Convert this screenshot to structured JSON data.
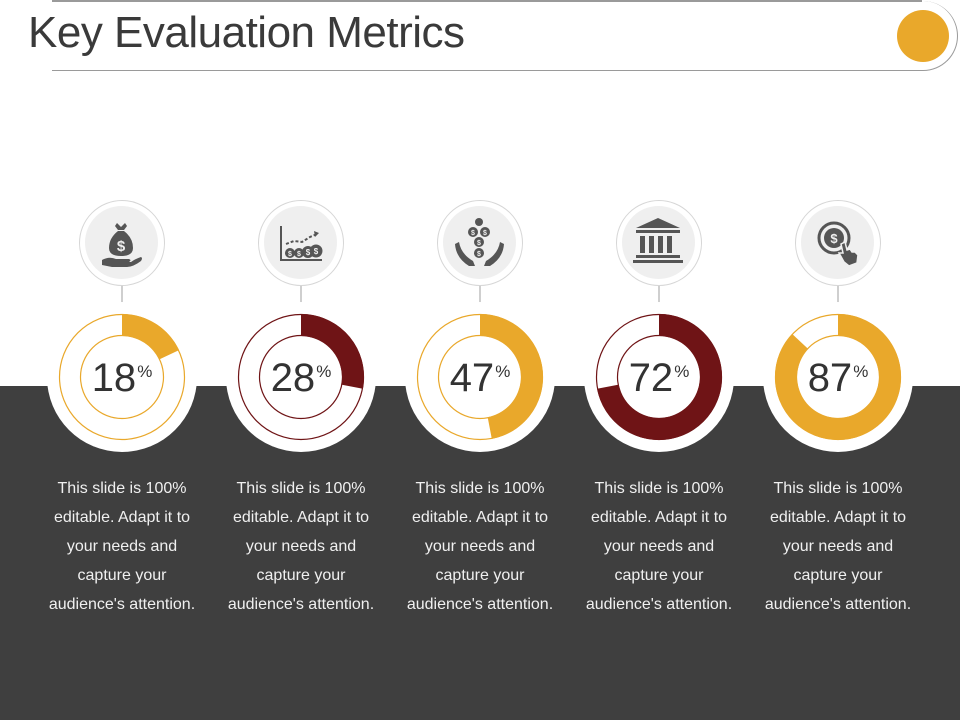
{
  "title": "Key Evaluation Metrics",
  "colors": {
    "accent": "#e9a82b",
    "dark_red": "#6f1416",
    "band": "#3f3f3f",
    "icon": "#555555"
  },
  "metrics": [
    {
      "icon": "money-bag-hand-icon",
      "value": 18,
      "color": "#e9a82b",
      "desc": "This slide is 100% editable. Adapt it to your needs and capture your audience's attention."
    },
    {
      "icon": "money-growth-chart-icon",
      "value": 28,
      "color": "#6f1416",
      "desc": "This slide is 100% editable. Adapt it to your needs and capture your audience's attention."
    },
    {
      "icon": "coins-hands-icon",
      "value": 47,
      "color": "#e9a82b",
      "desc": "This slide is 100% editable. Adapt it to your needs and capture your audience's attention."
    },
    {
      "icon": "bank-building-icon",
      "value": 72,
      "color": "#6f1416",
      "desc": "This slide is 100% editable. Adapt it to your needs and capture your audience's attention."
    },
    {
      "icon": "coin-click-icon",
      "value": 87,
      "color": "#e9a82b",
      "desc": "This slide is 100% editable. Adapt it to your needs and capture your audience's attention."
    }
  ],
  "percent_sign": "%"
}
